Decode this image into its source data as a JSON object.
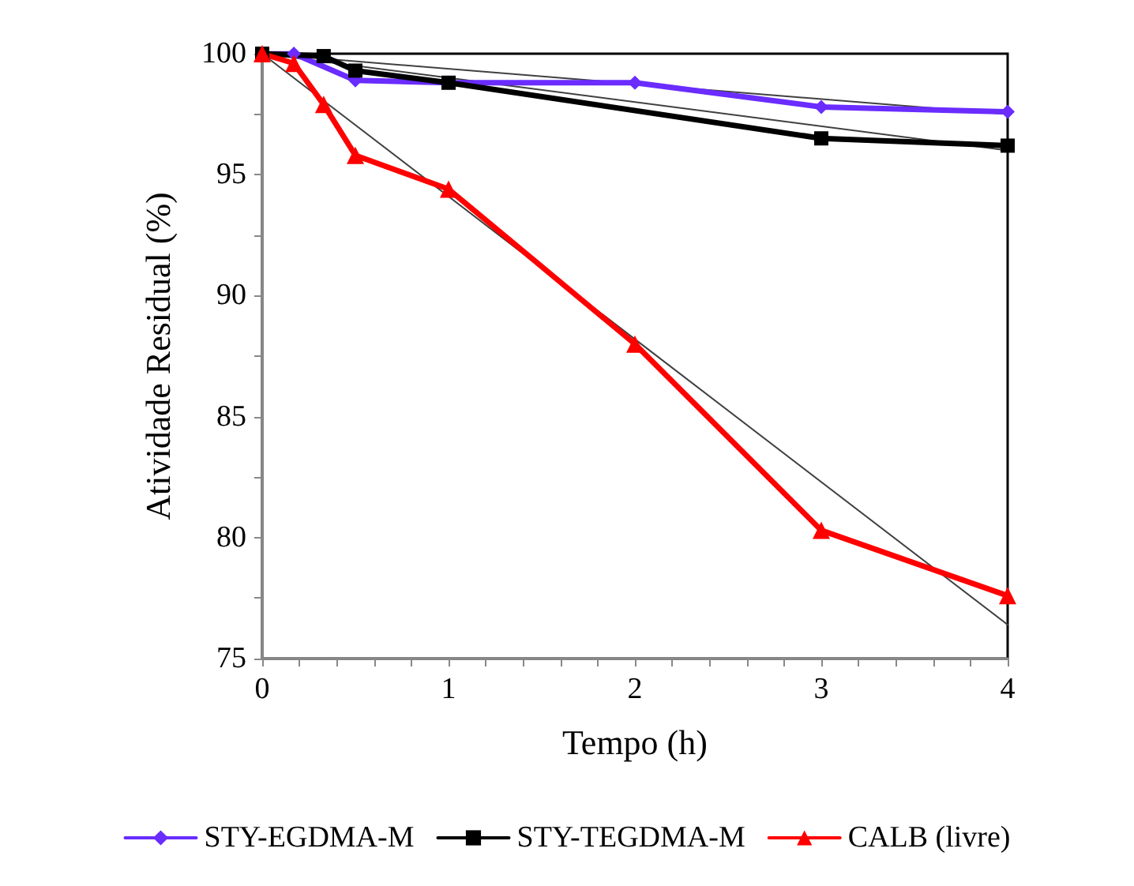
{
  "chart_data": {
    "type": "line",
    "xlabel": "Tempo (h)",
    "ylabel": "Atividade Residual (%)",
    "xlim": [
      0,
      4
    ],
    "ylim": [
      75,
      100
    ],
    "xticks": [
      0,
      {
        "value": 0.2,
        "label": null
      },
      {
        "value": 0.4,
        "label": null
      },
      {
        "value": 0.6,
        "label": null
      },
      {
        "value": 0.8,
        "label": null
      },
      1,
      {
        "value": 1.2,
        "label": null
      },
      {
        "value": 1.4,
        "label": null
      },
      {
        "value": 1.6,
        "label": null
      },
      {
        "value": 1.8,
        "label": null
      },
      2,
      {
        "value": 2.2,
        "label": null
      },
      {
        "value": 2.4,
        "label": null
      },
      {
        "value": 2.6,
        "label": null
      },
      {
        "value": 2.8,
        "label": null
      },
      3,
      {
        "value": 3.2,
        "label": null
      },
      {
        "value": 3.4,
        "label": null
      },
      {
        "value": 3.6,
        "label": null
      },
      {
        "value": 3.8,
        "label": null
      },
      4
    ],
    "yticks": [
      75,
      {
        "value": 77.5,
        "label": null
      },
      80,
      {
        "value": 82.5,
        "label": null
      },
      85,
      {
        "value": 87.5,
        "label": null
      },
      90,
      {
        "value": 92.5,
        "label": null
      },
      95,
      {
        "value": 97.5,
        "label": null
      },
      100
    ],
    "grid": false,
    "legend": "bottom",
    "line_style": "solid",
    "series": [
      {
        "name": "STY-EGDMA-M",
        "color": "#6a2cff",
        "marker": "diamond",
        "x": [
          0,
          0.17,
          0.5,
          1,
          2,
          3,
          4
        ],
        "values": [
          100,
          100,
          98.9,
          98.8,
          98.8,
          97.8,
          97.6
        ]
      },
      {
        "name": "STY-TEGDMA-M",
        "color": "#000000",
        "marker": "square",
        "x": [
          0,
          0.33,
          0.5,
          1,
          3,
          4
        ],
        "values": [
          100,
          99.9,
          99.3,
          98.8,
          96.5,
          96.2
        ]
      },
      {
        "name": "CALB (livre)",
        "color": "#ff0000",
        "marker": "triangle",
        "x": [
          0,
          0.17,
          0.33,
          0.5,
          1,
          2,
          3,
          4
        ],
        "values": [
          100,
          99.6,
          97.9,
          95.8,
          94.4,
          88.0,
          80.3,
          77.6
        ]
      },
      {
        "color": "#404040",
        "marker": "none",
        "x": [
          0,
          4
        ],
        "values": [
          100,
          97.5
        ]
      },
      {
        "color": "#404040",
        "marker": "none",
        "x": [
          0,
          4
        ],
        "values": [
          100,
          96.0
        ]
      },
      {
        "color": "#404040",
        "marker": "none",
        "x": [
          0,
          4
        ],
        "values": [
          100,
          76.4
        ]
      }
    ]
  }
}
